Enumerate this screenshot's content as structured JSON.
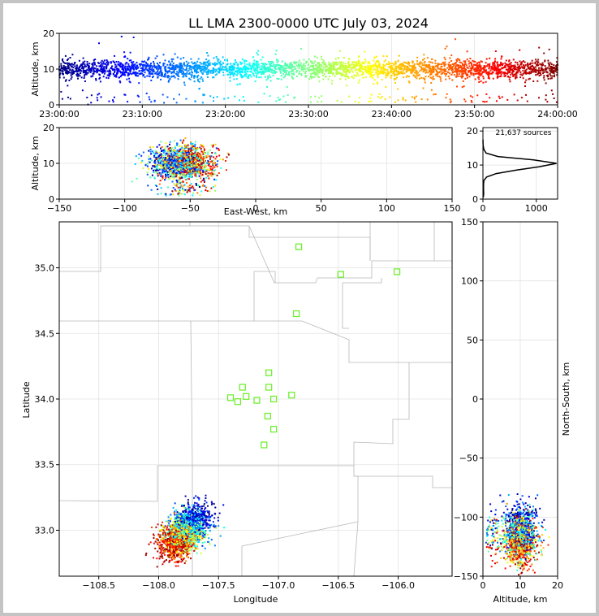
{
  "figure": {
    "title": "LL LMA 2300-0000 UTC July 03, 2024"
  },
  "chart_data": [
    {
      "name": "time-height",
      "type": "scatter",
      "xlabel": "",
      "ylabel": "Altitude, km",
      "x_ticks": [
        "23:00:00",
        "23:10:00",
        "23:20:00",
        "23:30:00",
        "23:40:00",
        "23:50:00",
        "24:00:00"
      ],
      "xlim_minutes": [
        0,
        60
      ],
      "ylim": [
        0,
        20
      ],
      "y_ticks": [
        0,
        10,
        20
      ],
      "grid": true,
      "color_by": "time",
      "colormap": [
        "#00007f",
        "#0000ff",
        "#007fff",
        "#00ffff",
        "#7fff7f",
        "#ffff00",
        "#ff7f00",
        "#ff0000",
        "#7f0000"
      ],
      "main_layer_km": [
        7,
        13
      ],
      "scattered_low_km": [
        0.5,
        3
      ]
    },
    {
      "name": "east-west-height",
      "type": "scatter",
      "xlabel": "East-West, km",
      "ylabel": "Altitude, km",
      "xlim": [
        -150,
        150
      ],
      "x_ticks": [
        -150,
        -100,
        -50,
        0,
        50,
        100,
        150
      ],
      "ylim": [
        0,
        20
      ],
      "y_ticks": [
        0,
        10,
        20
      ],
      "grid": true,
      "cluster_x_range": [
        -85,
        -25
      ],
      "cluster_core_x": -55,
      "cluster_core_alt": 10
    },
    {
      "name": "altitude-histogram",
      "type": "line",
      "annotation": "21,637 sources",
      "xlim": [
        0,
        1400
      ],
      "x_ticks": [
        0,
        1000
      ],
      "ylim": [
        0,
        21
      ],
      "y_ticks": [
        0,
        10,
        20
      ],
      "grid": true,
      "peak_count": 1380,
      "peak_altitude": 10.5,
      "profile": [
        {
          "alt": 0.5,
          "count": 6
        },
        {
          "alt": 1.5,
          "count": 14
        },
        {
          "alt": 2.5,
          "count": 12
        },
        {
          "alt": 3.5,
          "count": 10
        },
        {
          "alt": 4.5,
          "count": 12
        },
        {
          "alt": 5.5,
          "count": 18
        },
        {
          "alt": 6.5,
          "count": 70
        },
        {
          "alt": 7.5,
          "count": 250
        },
        {
          "alt": 8.5,
          "count": 620
        },
        {
          "alt": 9.5,
          "count": 1050
        },
        {
          "alt": 10.5,
          "count": 1380
        },
        {
          "alt": 11.5,
          "count": 950
        },
        {
          "alt": 12.5,
          "count": 280
        },
        {
          "alt": 13.5,
          "count": 60
        },
        {
          "alt": 14.5,
          "count": 20
        },
        {
          "alt": 15.5,
          "count": 6
        },
        {
          "alt": 16.5,
          "count": 2
        },
        {
          "alt": 17.5,
          "count": 1
        }
      ]
    },
    {
      "name": "plan-view",
      "type": "scatter",
      "xlabel": "Longitude",
      "ylabel": "Latitude",
      "xlim": [
        -108.83,
        -105.55
      ],
      "x_ticks": [
        -108.5,
        -108.0,
        -107.5,
        -107.0,
        -106.5,
        -106.0
      ],
      "ylim": [
        32.65,
        35.35
      ],
      "y_ticks": [
        33.0,
        33.5,
        34.0,
        34.5,
        35.0
      ],
      "grid": true,
      "stations": [
        {
          "lon": -106.83,
          "lat": 35.16
        },
        {
          "lon": -106.48,
          "lat": 34.95
        },
        {
          "lon": -106.01,
          "lat": 34.97
        },
        {
          "lon": -106.85,
          "lat": 34.65
        },
        {
          "lon": -107.08,
          "lat": 34.2
        },
        {
          "lon": -107.3,
          "lat": 34.09
        },
        {
          "lon": -107.08,
          "lat": 34.09
        },
        {
          "lon": -107.4,
          "lat": 34.01
        },
        {
          "lon": -107.27,
          "lat": 34.02
        },
        {
          "lon": -107.34,
          "lat": 33.98
        },
        {
          "lon": -107.18,
          "lat": 33.99
        },
        {
          "lon": -107.04,
          "lat": 34.0
        },
        {
          "lon": -106.89,
          "lat": 34.03
        },
        {
          "lon": -107.09,
          "lat": 33.87
        },
        {
          "lon": -107.04,
          "lat": 33.77
        },
        {
          "lon": -107.12,
          "lat": 33.65
        }
      ],
      "storm_center": {
        "lon": -107.8,
        "lat": 32.98
      }
    },
    {
      "name": "north-south-height",
      "type": "scatter",
      "xlabel": "Altitude, km",
      "ylabel": "North-South, km",
      "xlim": [
        0,
        20
      ],
      "x_ticks": [
        0,
        10,
        20
      ],
      "ylim": [
        -150,
        150
      ],
      "y_ticks": [
        -150,
        -100,
        -50,
        0,
        50,
        100,
        150
      ],
      "grid": true,
      "cluster_ns_range": [
        -145,
        -80
      ],
      "cluster_core_ns": -120
    }
  ]
}
